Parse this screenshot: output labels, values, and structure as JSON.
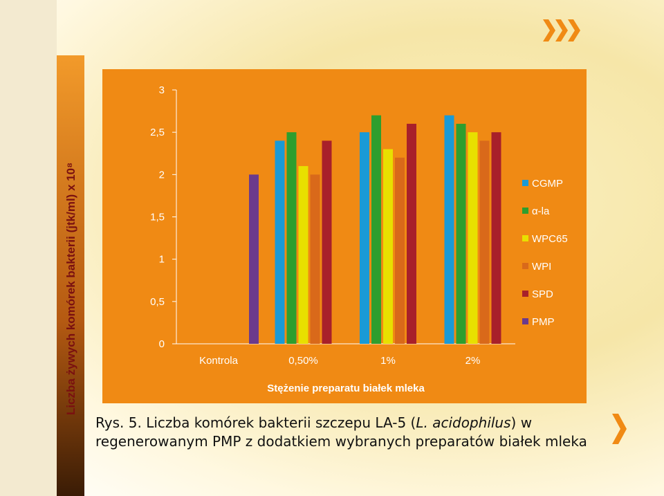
{
  "chart_data": {
    "type": "bar",
    "y_label": "Liczba żywych komórek bakterii (jtk/ml) x 10⁸",
    "x_label": "Stężenie preparatu białek mleka",
    "categories": [
      "Kontrola",
      "0,50%",
      "1%",
      "2%"
    ],
    "series": [
      {
        "name": "CGMP",
        "color": "#1a9ad6",
        "values": [
          null,
          2.4,
          2.5,
          2.7
        ]
      },
      {
        "name": "α-la",
        "color": "#2e9e2e",
        "values": [
          null,
          2.5,
          2.7,
          2.6
        ]
      },
      {
        "name": "WPC65",
        "color": "#e8e000",
        "values": [
          null,
          2.1,
          2.3,
          2.5
        ]
      },
      {
        "name": "WPI",
        "color": "#d9691a",
        "values": [
          null,
          2.0,
          2.2,
          2.4
        ]
      },
      {
        "name": "SPD",
        "color": "#a8202a",
        "values": [
          null,
          2.4,
          2.6,
          2.5
        ]
      },
      {
        "name": "PMP",
        "color": "#6b3a8c",
        "values": [
          2.0,
          null,
          null,
          null
        ]
      }
    ],
    "ylim": [
      0,
      3
    ],
    "yticks": [
      0,
      {
        "value": 0.5,
        "label": "0,5"
      },
      1,
      {
        "value": 1.5,
        "label": "1,5"
      },
      2,
      {
        "value": 2.5,
        "label": "2,5"
      },
      3
    ],
    "legend": "right",
    "caption": {
      "prefix": "Rys. 5. Liczba komórek bakterii szczepu LA-5 (",
      "italic": "L. acidophilus",
      "suffix": ") w regenerowanym PMP z dodatkiem wybranych preparatów białek mleka"
    }
  }
}
